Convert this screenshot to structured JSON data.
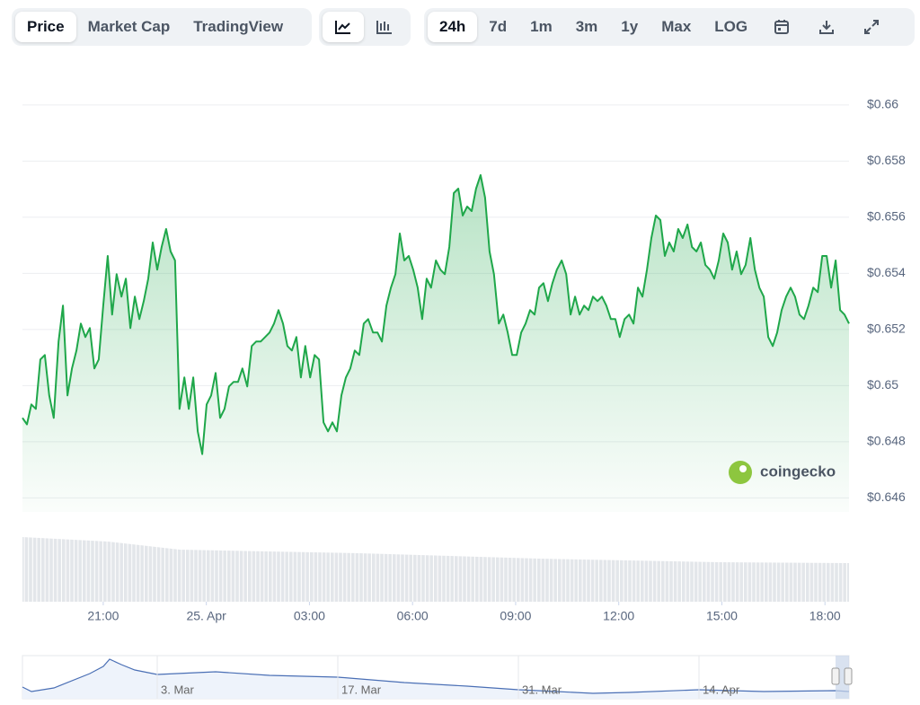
{
  "toolbar": {
    "views": [
      "Price",
      "Market Cap",
      "TradingView"
    ],
    "ranges": [
      "24h",
      "7d",
      "1m",
      "3m",
      "1y",
      "Max",
      "LOG"
    ]
  },
  "chart_data": {
    "type": "area",
    "color": "#1fa74a",
    "grid": true,
    "xlim": [
      18.65,
      42.7
    ],
    "xticks": [
      {
        "value": 21,
        "label": "21:00"
      },
      {
        "value": 24,
        "label": "25. Apr"
      },
      {
        "value": 27,
        "label": "03:00"
      },
      {
        "value": 30,
        "label": "06:00"
      },
      {
        "value": 33,
        "label": "09:00"
      },
      {
        "value": 36,
        "label": "12:00"
      },
      {
        "value": 39,
        "label": "15:00"
      },
      {
        "value": 42,
        "label": "18:00"
      }
    ],
    "ylim": [
      0.6455,
      0.6607
    ],
    "yticks": [
      {
        "value": 0.66,
        "label": "$0.66"
      },
      {
        "value": 0.658,
        "label": "$0.658"
      },
      {
        "value": 0.656,
        "label": "$0.656"
      },
      {
        "value": 0.654,
        "label": "$0.654"
      },
      {
        "value": 0.652,
        "label": "$0.652"
      },
      {
        "value": 0.65,
        "label": "$0.65"
      },
      {
        "value": 0.648,
        "label": "$0.648"
      },
      {
        "value": 0.646,
        "label": "$0.646"
      }
    ],
    "x": [
      18.65,
      18.78,
      18.91,
      19.04,
      19.17,
      19.3,
      19.43,
      19.56,
      19.7,
      19.83,
      19.96,
      20.09,
      20.22,
      20.35,
      20.48,
      20.61,
      20.74,
      20.87,
      21.0,
      21.13,
      21.26,
      21.39,
      21.53,
      21.66,
      21.79,
      21.92,
      22.05,
      22.18,
      22.31,
      22.44,
      22.57,
      22.7,
      22.83,
      22.96,
      23.09,
      23.22,
      23.36,
      23.49,
      23.62,
      23.75,
      23.88,
      24.01,
      24.14,
      24.27,
      24.4,
      24.53,
      24.66,
      24.79,
      24.92,
      25.05,
      25.19,
      25.32,
      25.45,
      25.58,
      25.71,
      25.84,
      25.97,
      26.1,
      26.23,
      26.36,
      26.49,
      26.62,
      26.75,
      26.88,
      27.02,
      27.15,
      27.28,
      27.41,
      27.54,
      27.67,
      27.8,
      27.93,
      28.06,
      28.19,
      28.32,
      28.45,
      28.58,
      28.71,
      28.85,
      28.98,
      29.11,
      29.24,
      29.37,
      29.5,
      29.63,
      29.76,
      29.89,
      30.02,
      30.15,
      30.28,
      30.41,
      30.54,
      30.68,
      30.81,
      30.94,
      31.07,
      31.2,
      31.33,
      31.46,
      31.59,
      31.72,
      31.85,
      31.98,
      32.11,
      32.24,
      32.37,
      32.51,
      32.64,
      32.77,
      32.9,
      33.03,
      33.16,
      33.29,
      33.42,
      33.55,
      33.68,
      33.81,
      33.94,
      34.07,
      34.2,
      34.34,
      34.47,
      34.6,
      34.73,
      34.86,
      34.99,
      35.12,
      35.25,
      35.38,
      35.51,
      35.64,
      35.77,
      35.9,
      36.03,
      36.17,
      36.3,
      36.43,
      36.56,
      36.69,
      36.82,
      36.95,
      37.08,
      37.21,
      37.34,
      37.47,
      37.6,
      37.73,
      37.86,
      38.0,
      38.13,
      38.26,
      38.39,
      38.52,
      38.65,
      38.78,
      38.91,
      39.04,
      39.17,
      39.3,
      39.43,
      39.56,
      39.69,
      39.83,
      39.96,
      40.09,
      40.22,
      40.35,
      40.48,
      40.61,
      40.74,
      40.87,
      41.0,
      41.13,
      41.26,
      41.39,
      41.52,
      41.66,
      41.79,
      41.92,
      42.05,
      42.18,
      42.31,
      42.44,
      42.57,
      42.7
    ],
    "values": [
      0.64885,
      0.64862,
      0.64933,
      0.64917,
      0.65093,
      0.65109,
      0.64965,
      0.64885,
      0.65157,
      0.65285,
      0.64965,
      0.65061,
      0.65125,
      0.65221,
      0.65173,
      0.65205,
      0.65061,
      0.65093,
      0.65285,
      0.65462,
      0.65253,
      0.65397,
      0.65317,
      0.65381,
      0.65205,
      0.65317,
      0.65237,
      0.65301,
      0.65381,
      0.6551,
      0.65413,
      0.65494,
      0.65558,
      0.65478,
      0.65446,
      0.64917,
      0.65029,
      0.64917,
      0.65029,
      0.64837,
      0.64756,
      0.64933,
      0.64965,
      0.65045,
      0.64885,
      0.64917,
      0.64997,
      0.65013,
      0.65013,
      0.65061,
      0.64997,
      0.65141,
      0.65157,
      0.65157,
      0.65173,
      0.65189,
      0.65221,
      0.65269,
      0.65221,
      0.65141,
      0.65125,
      0.65173,
      0.65029,
      0.65141,
      0.65029,
      0.65109,
      0.65093,
      0.64869,
      0.64837,
      0.64869,
      0.64837,
      0.64965,
      0.65029,
      0.65061,
      0.65125,
      0.65109,
      0.65221,
      0.65237,
      0.65189,
      0.65189,
      0.65157,
      0.65285,
      0.65349,
      0.65397,
      0.65542,
      0.65446,
      0.65462,
      0.65413,
      0.65349,
      0.65237,
      0.65381,
      0.65349,
      0.65446,
      0.65413,
      0.65397,
      0.65494,
      0.65686,
      0.65702,
      0.65606,
      0.65638,
      0.65622,
      0.65702,
      0.6575,
      0.6567,
      0.65478,
      0.65397,
      0.65221,
      0.65253,
      0.65189,
      0.65109,
      0.65109,
      0.65189,
      0.65221,
      0.65269,
      0.65253,
      0.65349,
      0.65365,
      0.65301,
      0.65365,
      0.65413,
      0.65446,
      0.65397,
      0.65253,
      0.65317,
      0.65253,
      0.65285,
      0.65269,
      0.65317,
      0.65301,
      0.65317,
      0.65285,
      0.65237,
      0.65237,
      0.65173,
      0.65237,
      0.65253,
      0.65221,
      0.65349,
      0.65317,
      0.65413,
      0.65526,
      0.65606,
      0.6559,
      0.65462,
      0.6551,
      0.65478,
      0.65558,
      0.65526,
      0.65574,
      0.65494,
      0.65478,
      0.6551,
      0.6543,
      0.65413,
      0.65381,
      0.65446,
      0.65542,
      0.6551,
      0.65413,
      0.65478,
      0.65397,
      0.6543,
      0.65526,
      0.65413,
      0.65349,
      0.65317,
      0.65173,
      0.65141,
      0.65189,
      0.65269,
      0.65317,
      0.65349,
      0.65317,
      0.65253,
      0.65237,
      0.65285,
      0.65349,
      0.65333,
      0.65462,
      0.65462,
      0.65349,
      0.65446,
      0.65269,
      0.65253,
      0.65221
    ]
  },
  "watermark": "coingecko",
  "navigator": {
    "labels": [
      "3. Mar",
      "17. Mar",
      "31. Mar",
      "14. Apr"
    ]
  }
}
